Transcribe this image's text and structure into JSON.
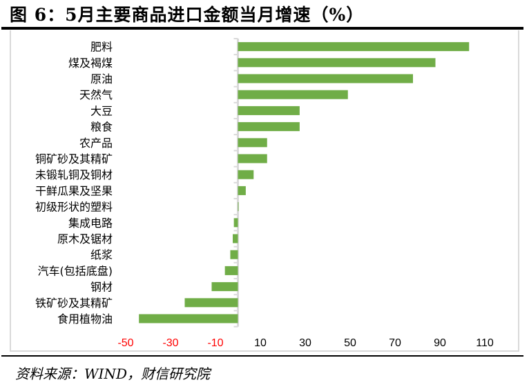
{
  "title": "图 6：5月主要商品进口金额当月增速（%）",
  "source": "资料来源：WIND，财信研究院",
  "chart_data": {
    "type": "bar",
    "orientation": "horizontal",
    "title": "图 6：5月主要商品进口金额当月增速（%）",
    "xlabel": "",
    "ylabel": "",
    "xlim": [
      -50,
      110
    ],
    "xticks": [
      -50,
      -30,
      -10,
      10,
      30,
      50,
      70,
      90,
      110
    ],
    "negative_tick_color": "#ff0000",
    "bar_color": "#70ad47",
    "categories": [
      "肥料",
      "煤及褐煤",
      "原油",
      "天然气",
      "大豆",
      "粮食",
      "农产品",
      "铜矿砂及其精矿",
      "未锻轧铜及铜材",
      "干鲜瓜果及坚果",
      "初级形状的塑料",
      "集成电路",
      "原木及锯材",
      "纸浆",
      "汽车(包括底盘)",
      "钢材",
      "铁矿砂及其精矿",
      "食用植物油"
    ],
    "values": [
      103,
      88,
      78,
      49,
      27.5,
      27.5,
      13,
      13,
      7,
      3.5,
      0.3,
      -1.8,
      -2.3,
      -3.4,
      -5.8,
      -11.7,
      -23.7,
      -44.1
    ],
    "grid": false
  }
}
